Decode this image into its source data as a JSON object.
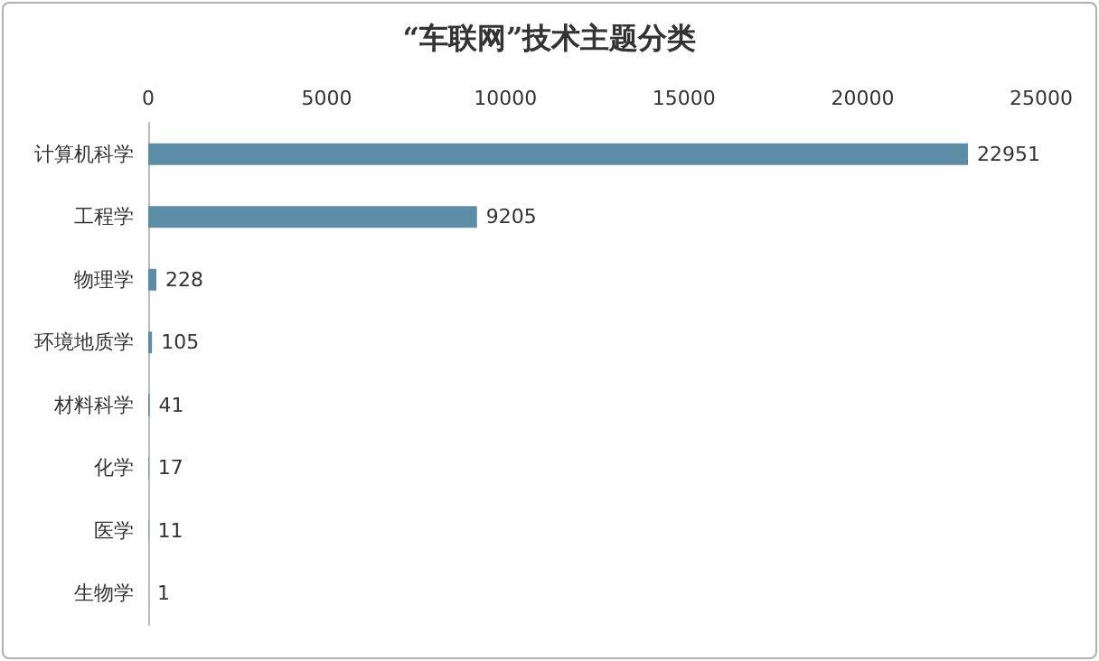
{
  "chart_data": {
    "type": "bar",
    "orientation": "horizontal",
    "title": "“车联网”技术主题分类",
    "categories": [
      "计算机科学",
      "工程学",
      "物理学",
      "环境地质学",
      "材料科学",
      "化学",
      "医学",
      "生物学"
    ],
    "values": [
      22951,
      9205,
      228,
      105,
      41,
      17,
      11,
      1
    ],
    "color": "#5b8ea6",
    "xlim": [
      0,
      25000
    ],
    "xticks": [
      0,
      5000,
      10000,
      15000,
      20000,
      25000
    ],
    "grid": false,
    "data_labels": true
  }
}
